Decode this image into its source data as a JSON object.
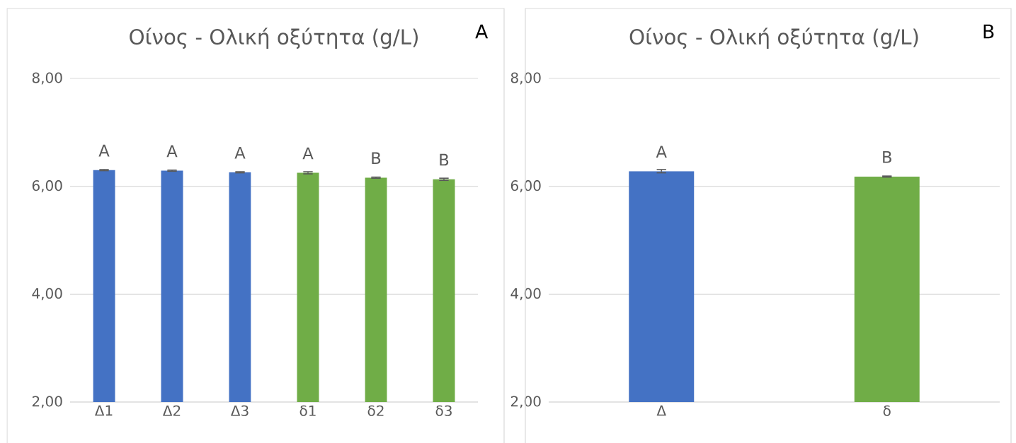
{
  "chart_data": [
    {
      "type": "bar",
      "title": "Οίνος - Ολική οξύτητα (g/L)",
      "categories": [
        "Δ1",
        "Δ2",
        "Δ3",
        "δ1",
        "δ2",
        "δ3"
      ],
      "values": [
        6.3,
        6.29,
        6.26,
        6.25,
        6.16,
        6.13
      ],
      "errors": [
        0.01,
        0.01,
        0.01,
        0.02,
        0.01,
        0.02
      ],
      "colors": [
        "#4472c4",
        "#4472c4",
        "#4472c4",
        "#70ad47",
        "#70ad47",
        "#70ad47"
      ],
      "ylim": [
        2,
        8
      ],
      "yticks": [
        {
          "value": 2,
          "label": "2,00"
        },
        {
          "value": 4,
          "label": "4,00"
        },
        {
          "value": 6,
          "label": "6,00"
        },
        {
          "value": 8,
          "label": "8,00"
        }
      ],
      "grid": "y",
      "annotations": [
        "A",
        {
          "text": "A",
          "x": "Δ1",
          "y": 6.3
        },
        {
          "text": "A",
          "x": "Δ2",
          "y": 6.29
        },
        {
          "text": "A",
          "x": "Δ3",
          "y": 6.26
        },
        {
          "text": "A",
          "x": "δ1",
          "y": 6.25
        },
        {
          "text": "B",
          "x": "δ2",
          "y": 6.16
        },
        {
          "text": "B",
          "x": "δ3",
          "y": 6.13
        }
      ]
    },
    {
      "type": "bar",
      "title": "Οίνος - Ολική οξύτητα (g/L)",
      "categories": [
        "Δ",
        "δ"
      ],
      "values": [
        6.28,
        6.18
      ],
      "errors": [
        0.03,
        0.01
      ],
      "colors": [
        "#4472c4",
        "#70ad47"
      ],
      "ylim": [
        2,
        8
      ],
      "yticks": [
        {
          "value": 2,
          "label": "2,00"
        },
        {
          "value": 4,
          "label": "4,00"
        },
        {
          "value": 6,
          "label": "6,00"
        },
        {
          "value": 8,
          "label": "8,00"
        }
      ],
      "grid": "y",
      "annotations": [
        "B",
        {
          "text": "A",
          "x": "Δ",
          "y": 6.28
        },
        {
          "text": "B",
          "x": "δ",
          "y": 6.18
        }
      ]
    }
  ]
}
